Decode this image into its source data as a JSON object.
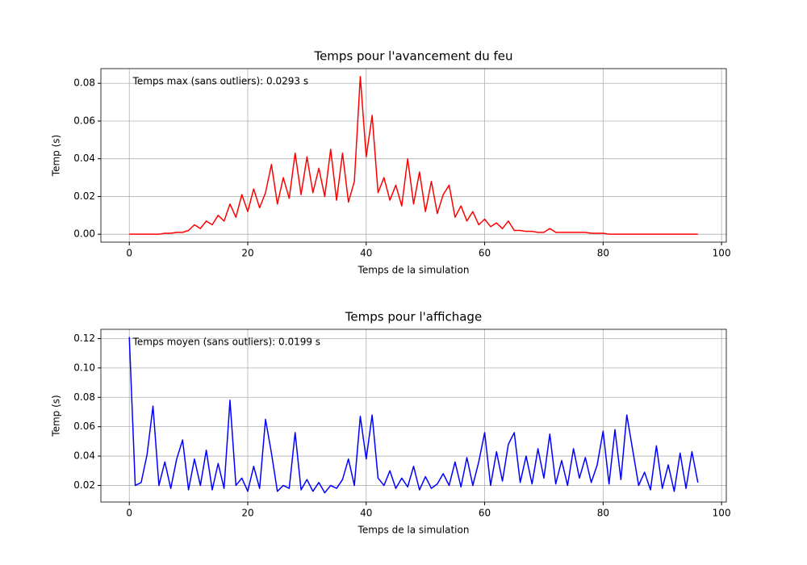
{
  "chart_data": [
    {
      "type": "line",
      "title": "Temps pour l'avancement du feu",
      "xlabel": "Temps de la simulation",
      "ylabel": "Temp (s)",
      "annotation": "Temps max (sans outliers): 0.0293 s",
      "xlim": [
        -4.8,
        100.8
      ],
      "xticks": [
        0,
        20,
        40,
        60,
        80,
        100
      ],
      "ylim": [
        -0.0042,
        0.0878
      ],
      "yticks": [
        {
          "value": 0,
          "label": "0.00"
        },
        0.02,
        0.04,
        0.06,
        0.08
      ],
      "grid": true,
      "x": [
        0,
        1,
        2,
        3,
        4,
        5,
        6,
        7,
        8,
        9,
        10,
        11,
        12,
        13,
        14,
        15,
        16,
        17,
        18,
        19,
        20,
        21,
        22,
        23,
        24,
        25,
        26,
        27,
        28,
        29,
        30,
        31,
        32,
        33,
        34,
        35,
        36,
        37,
        38,
        39,
        40,
        41,
        42,
        43,
        44,
        45,
        46,
        47,
        48,
        49,
        50,
        51,
        52,
        53,
        54,
        55,
        56,
        57,
        58,
        59,
        60,
        61,
        62,
        63,
        64,
        65,
        66,
        67,
        68,
        69,
        70,
        71,
        72,
        73,
        74,
        75,
        76,
        77,
        78,
        79,
        80,
        81,
        82,
        83,
        84,
        85,
        86,
        87,
        88,
        89,
        90,
        91,
        92,
        93,
        94,
        95,
        96
      ],
      "series": [
        {
          "color": "#ff0000",
          "values": [
            0,
            0,
            0,
            0,
            0,
            0,
            0.0005,
            0.0005,
            0.001,
            0.001,
            0.002,
            0.005,
            0.003,
            0.007,
            0.005,
            0.01,
            0.007,
            0.016,
            0.009,
            0.021,
            0.012,
            0.024,
            0.014,
            0.022,
            0.037,
            0.016,
            0.03,
            0.019,
            0.043,
            0.021,
            0.041,
            0.022,
            0.035,
            0.02,
            0.045,
            0.018,
            0.043,
            0.017,
            0.028,
            0.0836,
            0.041,
            0.063,
            0.022,
            0.03,
            0.018,
            0.026,
            0.015,
            0.04,
            0.016,
            0.033,
            0.012,
            0.028,
            0.011,
            0.021,
            0.026,
            0.009,
            0.015,
            0.007,
            0.012,
            0.005,
            0.008,
            0.004,
            0.006,
            0.003,
            0.007,
            0.002,
            0.002,
            0.0015,
            0.0015,
            0.001,
            0.001,
            0.003,
            0.001,
            0.001,
            0.001,
            0.001,
            0.001,
            0.001,
            0.0005,
            0.0005,
            0.0005,
            0,
            0,
            0,
            0,
            0,
            0,
            0,
            0,
            0,
            0,
            0,
            0,
            0,
            0,
            0,
            0
          ]
        }
      ]
    },
    {
      "type": "line",
      "title": "Temps pour l'affichage",
      "xlabel": "Temps de la simulation",
      "ylabel": "Temp (s)",
      "annotation": "Temps moyen (sans outliers): 0.0199 s",
      "xlim": [
        -4.8,
        100.8
      ],
      "xticks": [
        0,
        20,
        40,
        60,
        80,
        100
      ],
      "ylim": [
        0.0087,
        0.1263
      ],
      "yticks": [
        0.02,
        0.04,
        0.06,
        0.08,
        {
          "value": 0.1,
          "label": "0.10"
        },
        0.12
      ],
      "grid": true,
      "x": [
        0,
        1,
        2,
        3,
        4,
        5,
        6,
        7,
        8,
        9,
        10,
        11,
        12,
        13,
        14,
        15,
        16,
        17,
        18,
        19,
        20,
        21,
        22,
        23,
        24,
        25,
        26,
        27,
        28,
        29,
        30,
        31,
        32,
        33,
        34,
        35,
        36,
        37,
        38,
        39,
        40,
        41,
        42,
        43,
        44,
        45,
        46,
        47,
        48,
        49,
        50,
        51,
        52,
        53,
        54,
        55,
        56,
        57,
        58,
        59,
        60,
        61,
        62,
        63,
        64,
        65,
        66,
        67,
        68,
        69,
        70,
        71,
        72,
        73,
        74,
        75,
        76,
        77,
        78,
        79,
        80,
        81,
        82,
        83,
        84,
        85,
        86,
        87,
        88,
        89,
        90,
        91,
        92,
        93,
        94,
        95,
        96
      ],
      "series": [
        {
          "color": "#0000ff",
          "values": [
            0.121,
            0.02,
            0.022,
            0.041,
            0.074,
            0.02,
            0.036,
            0.018,
            0.038,
            0.051,
            0.017,
            0.038,
            0.02,
            0.044,
            0.017,
            0.035,
            0.018,
            0.078,
            0.02,
            0.025,
            0.016,
            0.033,
            0.018,
            0.065,
            0.042,
            0.016,
            0.02,
            0.018,
            0.056,
            0.017,
            0.024,
            0.016,
            0.022,
            0.015,
            0.02,
            0.018,
            0.024,
            0.038,
            0.02,
            0.067,
            0.038,
            0.068,
            0.025,
            0.02,
            0.03,
            0.018,
            0.025,
            0.019,
            0.033,
            0.017,
            0.026,
            0.018,
            0.021,
            0.028,
            0.02,
            0.036,
            0.019,
            0.039,
            0.02,
            0.036,
            0.056,
            0.02,
            0.043,
            0.023,
            0.048,
            0.056,
            0.022,
            0.04,
            0.021,
            0.045,
            0.025,
            0.055,
            0.021,
            0.037,
            0.02,
            0.045,
            0.025,
            0.039,
            0.022,
            0.034,
            0.057,
            0.021,
            0.058,
            0.024,
            0.068,
            0.044,
            0.02,
            0.029,
            0.017,
            0.047,
            0.018,
            0.034,
            0.016,
            0.042,
            0.018,
            0.043,
            0.022
          ]
        }
      ]
    }
  ]
}
